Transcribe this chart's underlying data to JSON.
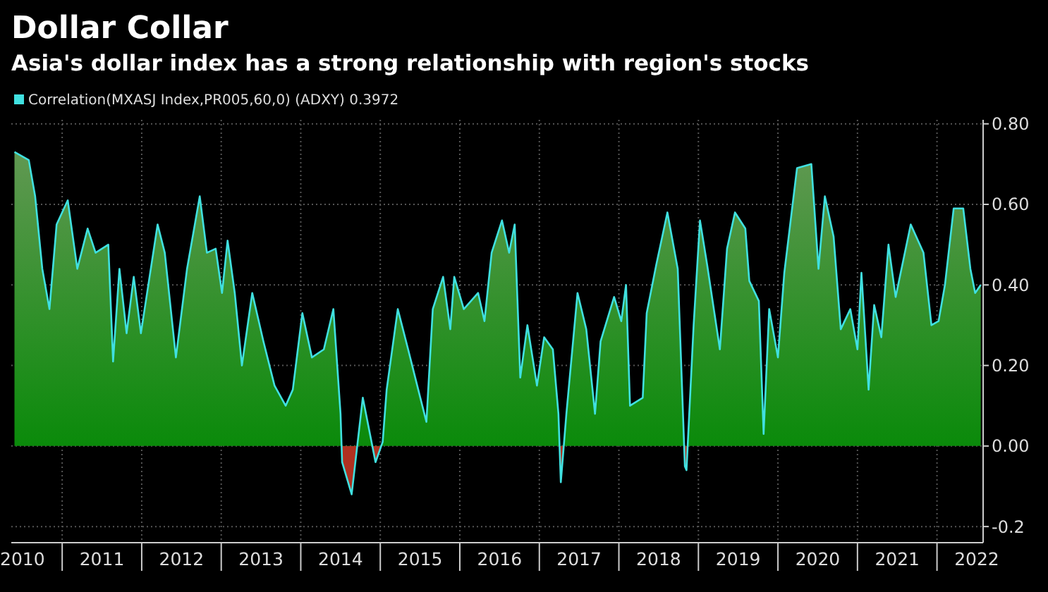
{
  "chart_data": {
    "type": "area",
    "title": "Dollar Collar",
    "subtitle": "Asia's dollar index has a strong relationship with region's stocks",
    "legend": "top left",
    "grid": true,
    "xlim": [
      2010.36,
      2022.58
    ],
    "xticks": [
      {
        "value": 2010.5,
        "label": "2010"
      },
      {
        "value": 2011,
        "label": null
      },
      {
        "value": 2011.5,
        "label": "2011"
      },
      {
        "value": 2012,
        "label": null
      },
      {
        "value": 2012.5,
        "label": "2012"
      },
      {
        "value": 2013,
        "label": null
      },
      {
        "value": 2013.5,
        "label": "2013"
      },
      {
        "value": 2014,
        "label": null
      },
      {
        "value": 2014.5,
        "label": "2014"
      },
      {
        "value": 2015,
        "label": null
      },
      {
        "value": 2015.5,
        "label": "2015"
      },
      {
        "value": 2016,
        "label": null
      },
      {
        "value": 2016.5,
        "label": "2016"
      },
      {
        "value": 2017,
        "label": null
      },
      {
        "value": 2017.5,
        "label": "2017"
      },
      {
        "value": 2018,
        "label": null
      },
      {
        "value": 2018.5,
        "label": "2018"
      },
      {
        "value": 2019,
        "label": null
      },
      {
        "value": 2019.5,
        "label": "2019"
      },
      {
        "value": 2020,
        "label": null
      },
      {
        "value": 2020.5,
        "label": "2020"
      },
      {
        "value": 2021,
        "label": null
      },
      {
        "value": 2021.5,
        "label": "2021"
      },
      {
        "value": 2022,
        "label": null
      },
      {
        "value": 2022.5,
        "label": "2022"
      }
    ],
    "ylim": [
      -0.24,
      0.81
    ],
    "yticks": [
      {
        "value": -0.2,
        "label": "-0.2"
      },
      {
        "value": 0,
        "label": "0.00"
      },
      {
        "value": 0.2,
        "label": "0.20"
      },
      {
        "value": 0.4,
        "label": "0.40"
      },
      {
        "value": 0.6,
        "label": "0.60"
      },
      {
        "value": 0.8,
        "label": "0.80"
      }
    ],
    "x": [
      2010.4,
      2010.58,
      2010.66,
      2010.75,
      2010.84,
      2010.93,
      2011.07,
      2011.19,
      2011.32,
      2011.42,
      2011.58,
      2011.64,
      2011.72,
      2011.81,
      2011.9,
      2011.99,
      2012.2,
      2012.29,
      2012.43,
      2012.57,
      2012.73,
      2012.82,
      2012.93,
      2013.01,
      2013.08,
      2013.17,
      2013.26,
      2013.39,
      2013.53,
      2013.67,
      2013.81,
      2013.9,
      2014.02,
      2014.14,
      2014.29,
      2014.41,
      2014.5,
      2014.52,
      2014.64,
      2014.78,
      2014.94,
      2015.03,
      2015.08,
      2015.22,
      2015.35,
      2015.49,
      2015.58,
      2015.66,
      2015.79,
      2015.88,
      2015.93,
      2016.05,
      2016.23,
      2016.31,
      2016.4,
      2016.53,
      2016.62,
      2016.69,
      2016.76,
      2016.85,
      2016.97,
      2017.06,
      2017.17,
      2017.24,
      2017.27,
      2017.34,
      2017.48,
      2017.59,
      2017.7,
      2017.77,
      2017.94,
      2018.03,
      2018.09,
      2018.14,
      2018.3,
      2018.35,
      2018.47,
      2018.61,
      2018.74,
      2018.83,
      2018.85,
      2018.94,
      2019.02,
      2019.11,
      2019.27,
      2019.36,
      2019.46,
      2019.59,
      2019.64,
      2019.76,
      2019.82,
      2019.89,
      2020.0,
      2020.08,
      2020.24,
      2020.42,
      2020.51,
      2020.59,
      2020.7,
      2020.79,
      2020.91,
      2021.0,
      2021.05,
      2021.14,
      2021.21,
      2021.3,
      2021.39,
      2021.48,
      2021.67,
      2021.83,
      2021.93,
      2022.02,
      2022.1,
      2022.21,
      2022.33,
      2022.42,
      2022.48,
      2022.55
    ],
    "series": [
      {
        "name": "Correlation(MXASJ Index,PR005,60,0) (ADXY) 0.3972",
        "color": "#40e0e0",
        "values": [
          0.73,
          0.71,
          0.62,
          0.44,
          0.34,
          0.55,
          0.61,
          0.44,
          0.54,
          0.48,
          0.5,
          0.21,
          0.44,
          0.28,
          0.42,
          0.28,
          0.55,
          0.48,
          0.22,
          0.44,
          0.62,
          0.48,
          0.49,
          0.38,
          0.51,
          0.38,
          0.2,
          0.38,
          0.26,
          0.15,
          0.1,
          0.14,
          0.33,
          0.22,
          0.24,
          0.34,
          0.08,
          -0.04,
          -0.12,
          0.12,
          -0.04,
          0.01,
          0.14,
          0.34,
          0.24,
          0.13,
          0.06,
          0.34,
          0.42,
          0.29,
          0.42,
          0.34,
          0.38,
          0.31,
          0.48,
          0.56,
          0.48,
          0.55,
          0.17,
          0.3,
          0.15,
          0.27,
          0.24,
          0.08,
          -0.09,
          0.08,
          0.38,
          0.29,
          0.08,
          0.26,
          0.37,
          0.31,
          0.4,
          0.1,
          0.12,
          0.33,
          0.45,
          0.58,
          0.44,
          -0.05,
          -0.06,
          0.3,
          0.56,
          0.45,
          0.24,
          0.49,
          0.58,
          0.54,
          0.41,
          0.36,
          0.03,
          0.34,
          0.22,
          0.43,
          0.69,
          0.7,
          0.44,
          0.62,
          0.52,
          0.29,
          0.34,
          0.24,
          0.43,
          0.14,
          0.35,
          0.27,
          0.5,
          0.37,
          0.55,
          0.48,
          0.3,
          0.31,
          0.4,
          0.59,
          0.59,
          0.44,
          0.38,
          0.4
        ]
      }
    ]
  }
}
